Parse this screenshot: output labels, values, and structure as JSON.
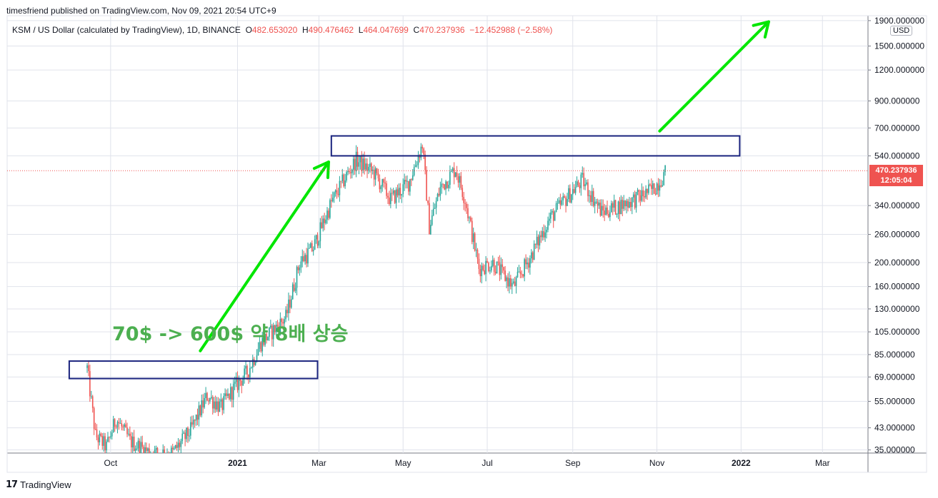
{
  "header": {
    "publisher": "timesfriend published on TradingView.com, Nov 09, 2021 20:54 UTC+9"
  },
  "legend": {
    "symbol": "KSM / US Dollar (calculated by TradingView), 1D, BINANCE",
    "o_label": "O",
    "o_value": "482.653020",
    "h_label": "H",
    "h_value": "490.476462",
    "l_label": "L",
    "l_value": "464.047699",
    "c_label": "C",
    "c_value": "470.237936",
    "change": "−12.452988 (−2.58%)"
  },
  "price_tag": {
    "price": "470.237936",
    "countdown": "12:05:04"
  },
  "currency": "USD",
  "annotation": {
    "text": "70$ -> 600$ 약 8배 상승",
    "color": "#4caf50"
  },
  "footer": {
    "brand": "TradingView"
  },
  "colors": {
    "up": "#26a69a",
    "down": "#ef5350",
    "arrow": "#00e600",
    "box": "#1a237e",
    "grid": "#e0e3eb"
  },
  "chart_data": {
    "type": "candlestick",
    "title": "KSM / US Dollar (calculated by TradingView), 1D, BINANCE",
    "yscale": "log",
    "ylim": [
      34,
      1950
    ],
    "y_ticks": [
      {
        "v": 1900,
        "label": "1900.000000"
      },
      {
        "v": 1500,
        "label": "1500.000000"
      },
      {
        "v": 1200,
        "label": "1200.000000"
      },
      {
        "v": 900,
        "label": "900.000000"
      },
      {
        "v": 700,
        "label": "700.000000"
      },
      {
        "v": 540,
        "label": "540.000000"
      },
      {
        "v": 340,
        "label": "340.000000"
      },
      {
        "v": 260,
        "label": "260.000000"
      },
      {
        "v": 200,
        "label": "200.000000"
      },
      {
        "v": 160,
        "label": "160.000000"
      },
      {
        "v": 130,
        "label": "130.000000"
      },
      {
        "v": 105,
        "label": "105.000000"
      },
      {
        "v": 85,
        "label": "85.000000"
      },
      {
        "v": 69,
        "label": "69.000000"
      },
      {
        "v": 55,
        "label": "55.000000"
      },
      {
        "v": 43,
        "label": "43.000000"
      },
      {
        "v": 35,
        "label": "35.000000"
      }
    ],
    "x_ticks": [
      {
        "date": "2020-10-01",
        "label": "Oct",
        "bold": false
      },
      {
        "date": "2021-01-01",
        "label": "2021",
        "bold": true
      },
      {
        "date": "2021-03-01",
        "label": "Mar",
        "bold": false
      },
      {
        "date": "2021-05-01",
        "label": "May",
        "bold": false
      },
      {
        "date": "2021-07-01",
        "label": "Jul",
        "bold": false
      },
      {
        "date": "2021-09-01",
        "label": "Sep",
        "bold": false
      },
      {
        "date": "2021-11-01",
        "label": "Nov",
        "bold": false
      },
      {
        "date": "2022-01-01",
        "label": "2022",
        "bold": true
      },
      {
        "date": "2022-03-01",
        "label": "Mar",
        "bold": false
      }
    ],
    "xlim": [
      "2020-07-18",
      "2022-04-03"
    ],
    "series_close": [
      {
        "date": "2020-09-14",
        "v": 75
      },
      {
        "date": "2020-09-20",
        "v": 40
      },
      {
        "date": "2020-09-28",
        "v": 36
      },
      {
        "date": "2020-10-05",
        "v": 47
      },
      {
        "date": "2020-10-15",
        "v": 38
      },
      {
        "date": "2020-10-30",
        "v": 34
      },
      {
        "date": "2020-11-15",
        "v": 34
      },
      {
        "date": "2020-11-28",
        "v": 42
      },
      {
        "date": "2020-12-10",
        "v": 58
      },
      {
        "date": "2020-12-20",
        "v": 52
      },
      {
        "date": "2020-12-30",
        "v": 63
      },
      {
        "date": "2021-01-08",
        "v": 72
      },
      {
        "date": "2021-01-18",
        "v": 95
      },
      {
        "date": "2021-02-05",
        "v": 120
      },
      {
        "date": "2021-02-15",
        "v": 200
      },
      {
        "date": "2021-02-25",
        "v": 230
      },
      {
        "date": "2021-03-10",
        "v": 350
      },
      {
        "date": "2021-03-20",
        "v": 440
      },
      {
        "date": "2021-03-28",
        "v": 520
      },
      {
        "date": "2021-04-10",
        "v": 460
      },
      {
        "date": "2021-04-22",
        "v": 360
      },
      {
        "date": "2021-05-05",
        "v": 420
      },
      {
        "date": "2021-05-15",
        "v": 600
      },
      {
        "date": "2021-05-20",
        "v": 280
      },
      {
        "date": "2021-05-28",
        "v": 400
      },
      {
        "date": "2021-06-08",
        "v": 480
      },
      {
        "date": "2021-06-15",
        "v": 360
      },
      {
        "date": "2021-06-25",
        "v": 190
      },
      {
        "date": "2021-07-05",
        "v": 200
      },
      {
        "date": "2021-07-20",
        "v": 160
      },
      {
        "date": "2021-08-01",
        "v": 210
      },
      {
        "date": "2021-08-15",
        "v": 300
      },
      {
        "date": "2021-08-30",
        "v": 380
      },
      {
        "date": "2021-09-08",
        "v": 430
      },
      {
        "date": "2021-09-22",
        "v": 320
      },
      {
        "date": "2021-10-05",
        "v": 340
      },
      {
        "date": "2021-10-20",
        "v": 370
      },
      {
        "date": "2021-10-30",
        "v": 400
      },
      {
        "date": "2021-11-08",
        "v": 470
      }
    ],
    "annotations": [
      {
        "type": "rect",
        "x0": "2020-09-01",
        "x1": "2021-02-28",
        "y0": 68,
        "y1": 80
      },
      {
        "type": "rect",
        "x0": "2021-03-10",
        "x1": "2021-12-31",
        "y0": 540,
        "y1": 650
      },
      {
        "type": "arrow",
        "x0": "2020-12-05",
        "y0": 88,
        "x1": "2021-03-08",
        "y1": 510
      },
      {
        "type": "arrow",
        "x0": "2021-11-03",
        "y0": 680,
        "x1": "2022-01-21",
        "y1": 1880
      }
    ]
  }
}
